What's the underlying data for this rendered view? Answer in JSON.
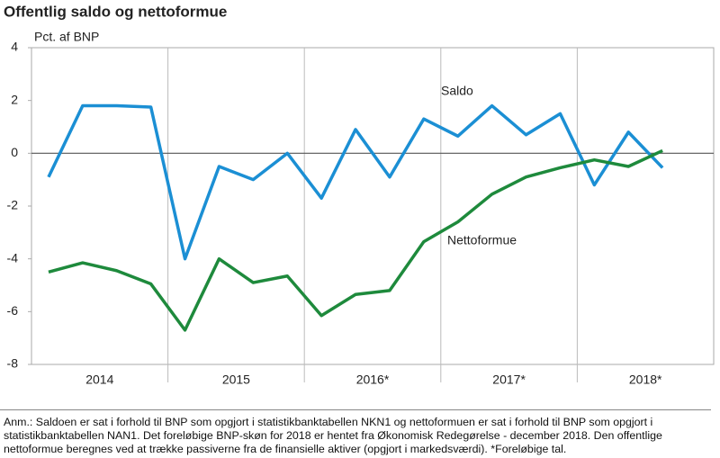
{
  "chart_data": {
    "type": "line",
    "title": "Offentlig saldo og nettoformue",
    "y_label": "Pct. af BNP",
    "categories": [
      null,
      null,
      null,
      null,
      null,
      null,
      null,
      null,
      null,
      null,
      null,
      null,
      null,
      null,
      null,
      null,
      null,
      null,
      null,
      null
    ],
    "groups": [
      "2014",
      "2015",
      "2016*",
      "2017*",
      "2018*"
    ],
    "series": [
      {
        "name": "Saldo",
        "color": "#1b8fd4",
        "values": [
          -0.9,
          1.8,
          1.8,
          1.75,
          -4.0,
          -0.5,
          -1.0,
          0.0,
          -1.7,
          0.9,
          -0.9,
          1.3,
          0.65,
          1.8,
          0.7,
          1.5,
          -1.2,
          0.8,
          -0.55,
          null
        ]
      },
      {
        "name": "Nettoformue",
        "color": "#1e8a3c",
        "values": [
          -4.5,
          -4.15,
          -4.45,
          -4.95,
          -6.7,
          -4.0,
          -4.9,
          -4.65,
          -6.15,
          -5.35,
          -5.2,
          -3.35,
          -2.6,
          -1.55,
          -0.9,
          -0.55,
          -0.25,
          -0.5,
          0.1,
          null
        ]
      }
    ],
    "ylim": [
      -8,
      4
    ],
    "yticks": [
      -8,
      -6,
      -4,
      -2,
      0,
      2,
      4
    ],
    "note": "Anm.: Saldoen er sat i forhold til BNP som opgjort i statistikbanktabellen NKN1 og nettoformuen er sat i forhold til BNP som opgjort i statistikbanktabellen NAN1. Det foreløbige BNP-skøn for 2018 er hentet fra Økonomisk Redegørelse - december 2018. Den offentlige nettoformue beregnes ved at trække passiverne fra de finansielle aktiver (opgjort i markedsværdi). *Foreløbige tal."
  }
}
